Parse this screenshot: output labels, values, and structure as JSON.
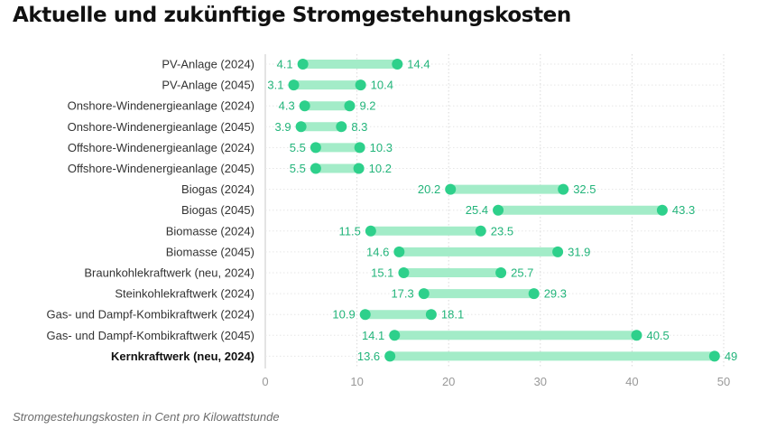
{
  "title": "Aktuelle und zukünftige Stromgestehungskosten",
  "footnote": "Stromgestehungskosten in Cent pro Kilowattstunde",
  "colors": {
    "dot": "#2ed08b",
    "bar": "#a3ecc8",
    "label": "#22b47a",
    "grid": "#d9d9d9",
    "tick": "#999999",
    "category": "#333333"
  },
  "chart_data": {
    "type": "dumbbell",
    "title": "Aktuelle und zukünftige Stromgestehungskosten",
    "xlabel": "Stromgestehungskosten in Cent pro Kilowattstunde",
    "ylabel": "",
    "xlim": [
      0,
      50
    ],
    "xticks": [
      0,
      10,
      20,
      30,
      40,
      50
    ],
    "grid": "vertical dotted",
    "categories": [
      "PV-Anlage (2024)",
      "PV-Anlage (2045)",
      "Onshore-Windenergieanlage (2024)",
      "Onshore-Windenergieanlage (2045)",
      "Offshore-Windenergieanlage (2024)",
      "Offshore-Windenergieanlage (2045)",
      "Biogas (2024)",
      "Biogas (2045)",
      "Biomasse (2024)",
      "Biomasse (2045)",
      "Braunkohlekraftwerk (neu, 2024)",
      "Steinkohlekraftwerk (2024)",
      "Gas- und Dampf-Kombikraftwerk (2024)",
      "Gas- und Dampf-Kombikraftwerk (2045)",
      "Kernkraftwerk (neu, 2024)"
    ],
    "bold_categories": [
      "Kernkraftwerk (neu, 2024)"
    ],
    "min_labels": [
      "4.1",
      "3.1",
      "4.3",
      "3.9",
      "5.5",
      "5.5",
      "20.2",
      "25.4",
      "11.5",
      "14.6",
      "15.1",
      "17.3",
      "10.9",
      "14.1",
      "13.6"
    ],
    "max_labels": [
      "14.4",
      "10.4",
      "9.2",
      "8.3",
      "10.3",
      "10.2",
      "32.5",
      "43.3",
      "23.5",
      "31.9",
      "25.7",
      "29.3",
      "18.1",
      "40.5",
      "49"
    ],
    "series": [
      {
        "name": "",
        "values": [
          4.1,
          3.1,
          4.3,
          3.9,
          5.5,
          5.5,
          20.2,
          25.4,
          11.5,
          14.6,
          15.1,
          17.3,
          10.9,
          14.1,
          13.6
        ]
      },
      {
        "name": "",
        "values": [
          14.4,
          10.4,
          9.2,
          8.3,
          10.3,
          10.2,
          32.5,
          43.3,
          23.5,
          31.9,
          25.7,
          29.3,
          18.1,
          40.5,
          49
        ]
      }
    ]
  }
}
